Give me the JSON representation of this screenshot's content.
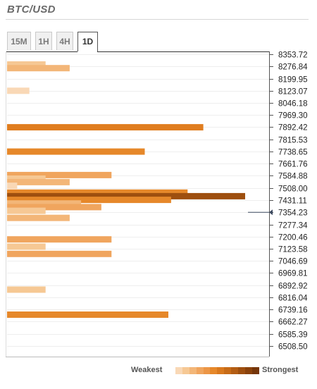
{
  "header": {
    "title": "BTC/USD"
  },
  "tabs": [
    {
      "label": "15M",
      "active": false
    },
    {
      "label": "1H",
      "active": false
    },
    {
      "label": "4H",
      "active": false
    },
    {
      "label": "1D",
      "active": true
    }
  ],
  "legend": {
    "weak_label": "Weakest",
    "strong_label": "Strongest",
    "ramp_colors": [
      "#f9d8b6",
      "#f6c894",
      "#f3b678",
      "#f0a55e",
      "#ec9646",
      "#e6882a",
      "#d9791e",
      "#c76b17",
      "#b35d13",
      "#9e4f0f",
      "#8a420b",
      "#753609"
    ]
  },
  "chart_data": {
    "type": "bar",
    "orientation": "horizontal",
    "title": "",
    "xlabel": "",
    "ylabel": "",
    "ylim": [
      6508.5,
      8353.72
    ],
    "y_ticks": [
      "8353.72",
      "8276.84",
      "8199.95",
      "8123.07",
      "8046.18",
      "7969.30",
      "7892.42",
      "7815.53",
      "7738.65",
      "7661.76",
      "7584.88",
      "7508.00",
      "7431.11",
      "7354.23",
      "7277.34",
      "7200.46",
      "7123.58",
      "7046.69",
      "6969.81",
      "6892.92",
      "6816.04",
      "6739.16",
      "6662.27",
      "6585.39",
      "6508.50"
    ],
    "current_price": 7354.23,
    "bars": [
      {
        "price": 8289,
        "strength": 0.152,
        "color": "#f6c894"
      },
      {
        "price": 8266,
        "strength": 0.247,
        "color": "#f3b678"
      },
      {
        "price": 8123,
        "strength": 0.088,
        "color": "#f9d8b6"
      },
      {
        "price": 7892,
        "strength": 0.774,
        "color": "#e07d1f"
      },
      {
        "price": 7738,
        "strength": 0.543,
        "color": "#e6882a"
      },
      {
        "price": 7590,
        "strength": 0.412,
        "color": "#f0a55e"
      },
      {
        "price": 7567,
        "strength": 0.152,
        "color": "#f6c894"
      },
      {
        "price": 7545,
        "strength": 0.247,
        "color": "#f3b678"
      },
      {
        "price": 7522,
        "strength": 0.04,
        "color": "#f9d8b6"
      },
      {
        "price": 7479,
        "strength": 0.712,
        "color": "#e6882a"
      },
      {
        "price": 7456,
        "strength": 0.939,
        "color": "#9e4f0f"
      },
      {
        "price": 7433,
        "strength": 0.647,
        "color": "#e6882a"
      },
      {
        "price": 7410,
        "strength": 0.292,
        "color": "#f3b678"
      },
      {
        "price": 7387,
        "strength": 0.372,
        "color": "#f0a55e"
      },
      {
        "price": 7364,
        "strength": 0.152,
        "color": "#f6c894"
      },
      {
        "price": 7319,
        "strength": 0.247,
        "color": "#f3b678"
      },
      {
        "price": 7183,
        "strength": 0.412,
        "color": "#f0a55e"
      },
      {
        "price": 7137,
        "strength": 0.152,
        "color": "#f6c894"
      },
      {
        "price": 7091,
        "strength": 0.412,
        "color": "#f0a55e"
      },
      {
        "price": 6865,
        "strength": 0.152,
        "color": "#f6c894"
      },
      {
        "price": 6707,
        "strength": 0.636,
        "color": "#e6882a"
      }
    ]
  }
}
